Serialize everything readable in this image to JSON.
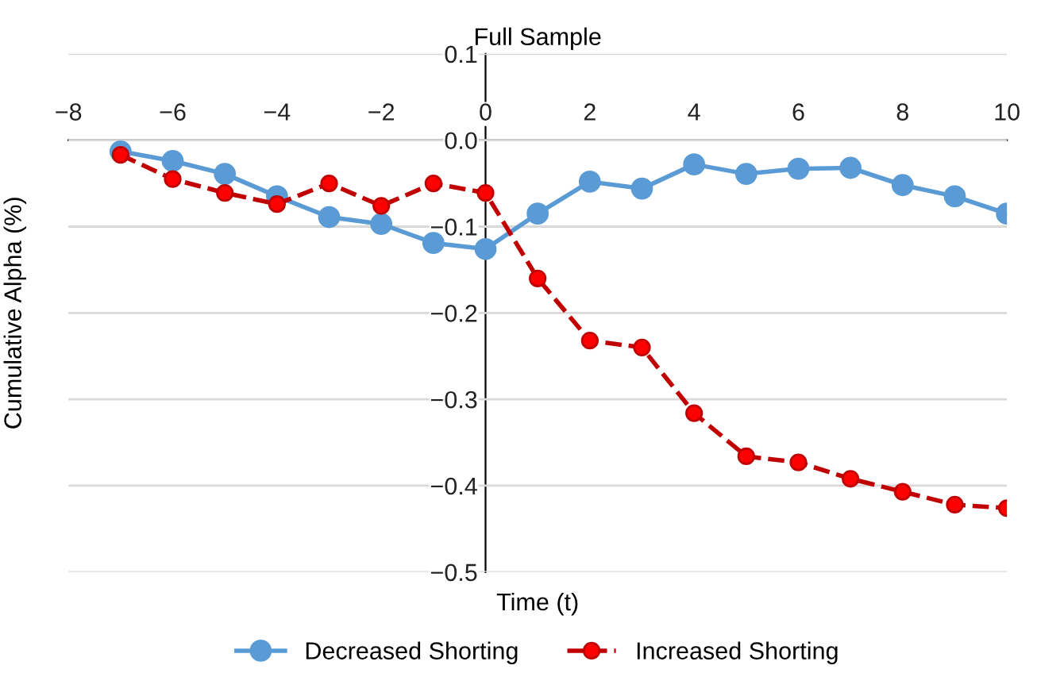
{
  "chart_data": {
    "type": "line",
    "title": "Full Sample",
    "xlabel": "Time (t)",
    "ylabel": "Cumulative Alpha (%)",
    "x": [
      -7,
      -6,
      -5,
      -4,
      -3,
      -2,
      -1,
      0,
      1,
      2,
      3,
      4,
      5,
      6,
      7,
      8,
      9,
      10
    ],
    "series": [
      {
        "name": "Decreased Shorting",
        "color": "#5b9bd5",
        "line_style": "solid",
        "values": [
          -0.013,
          -0.024,
          -0.039,
          -0.065,
          -0.089,
          -0.097,
          -0.119,
          -0.126,
          -0.085,
          -0.048,
          -0.056,
          -0.028,
          -0.039,
          -0.033,
          -0.032,
          -0.052,
          -0.065,
          -0.085
        ]
      },
      {
        "name": "Increased Shorting",
        "color": "#c00000",
        "line_style": "dashed",
        "values": [
          -0.017,
          -0.045,
          -0.061,
          -0.074,
          -0.05,
          -0.076,
          -0.05,
          -0.061,
          -0.16,
          -0.232,
          -0.24,
          -0.316,
          -0.366,
          -0.373,
          -0.392,
          -0.407,
          -0.422,
          -0.426
        ]
      }
    ],
    "xlim": [
      -8,
      10
    ],
    "xticks": [
      {
        "value": -8,
        "label": "−8"
      },
      {
        "value": -6,
        "label": "−6"
      },
      {
        "value": -4,
        "label": "−4"
      },
      {
        "value": -2,
        "label": "−2"
      },
      0,
      2,
      4,
      6,
      8,
      10
    ],
    "ylim": [
      -0.5,
      0.1
    ],
    "yticks": [
      {
        "value": -0.5,
        "label": "−0.5"
      },
      {
        "value": -0.4,
        "label": "−0.4"
      },
      {
        "value": -0.3,
        "label": "−0.3"
      },
      {
        "value": -0.2,
        "label": "−0.2"
      },
      {
        "value": -0.1,
        "label": "−0.1"
      },
      {
        "value": 0.0,
        "label": "0.0"
      },
      0.1
    ],
    "grid": "y",
    "legend": "bottom",
    "marker": "circle"
  }
}
